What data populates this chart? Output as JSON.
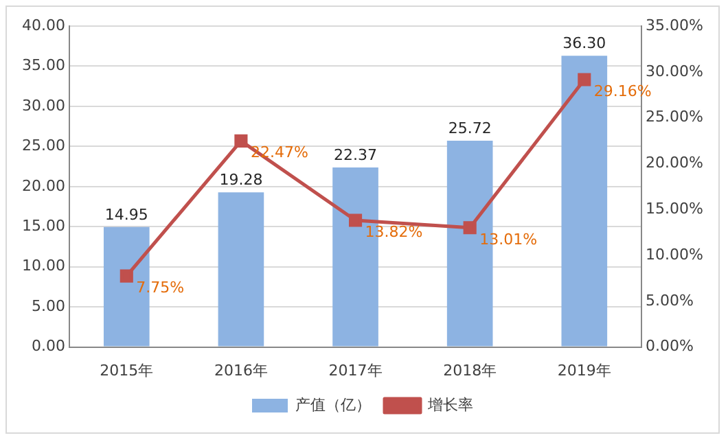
{
  "chart_data": {
    "type": "bar",
    "categories": [
      "2015年",
      "2016年",
      "2017年",
      "2018年",
      "2019年"
    ],
    "series": [
      {
        "name": "产值（亿）",
        "color": "#8db3e2",
        "values": [
          14.95,
          19.28,
          22.37,
          25.72,
          36.3
        ],
        "value_labels": [
          "14.95",
          "19.28",
          "22.37",
          "25.72",
          "36.30"
        ]
      },
      {
        "name": "增长率",
        "type": "line",
        "axis": "y2",
        "color": "#c0504d",
        "marker": "square",
        "values": [
          7.75,
          22.47,
          13.82,
          13.01,
          29.16
        ],
        "value_labels": [
          "7.75%",
          "22.47%",
          "13.82%",
          "13.01%",
          "29.16%"
        ]
      }
    ],
    "ylim": [
      0,
      40
    ],
    "yticks": [
      {
        "value": 0,
        "label": "0.00"
      },
      {
        "value": 5,
        "label": "5.00"
      },
      {
        "value": 10,
        "label": "10.00"
      },
      {
        "value": 15,
        "label": "15.00"
      },
      {
        "value": 20,
        "label": "20.00"
      },
      {
        "value": 25,
        "label": "25.00"
      },
      {
        "value": 30,
        "label": "30.00"
      },
      {
        "value": 35,
        "label": "35.00"
      },
      {
        "value": 40,
        "label": "40.00"
      }
    ],
    "y2lim": [
      0,
      35
    ],
    "y2ticks": [
      {
        "value": 0,
        "label": "0.00%"
      },
      {
        "value": 5,
        "label": "5.00%"
      },
      {
        "value": 10,
        "label": "10.00%"
      },
      {
        "value": 15,
        "label": "15.00%"
      },
      {
        "value": 20,
        "label": "20.00%"
      },
      {
        "value": 25,
        "label": "25.00%"
      },
      {
        "value": 30,
        "label": "30.00%"
      },
      {
        "value": 35,
        "label": "35.00%"
      }
    ],
    "grid": "y",
    "legend": "bottom"
  }
}
